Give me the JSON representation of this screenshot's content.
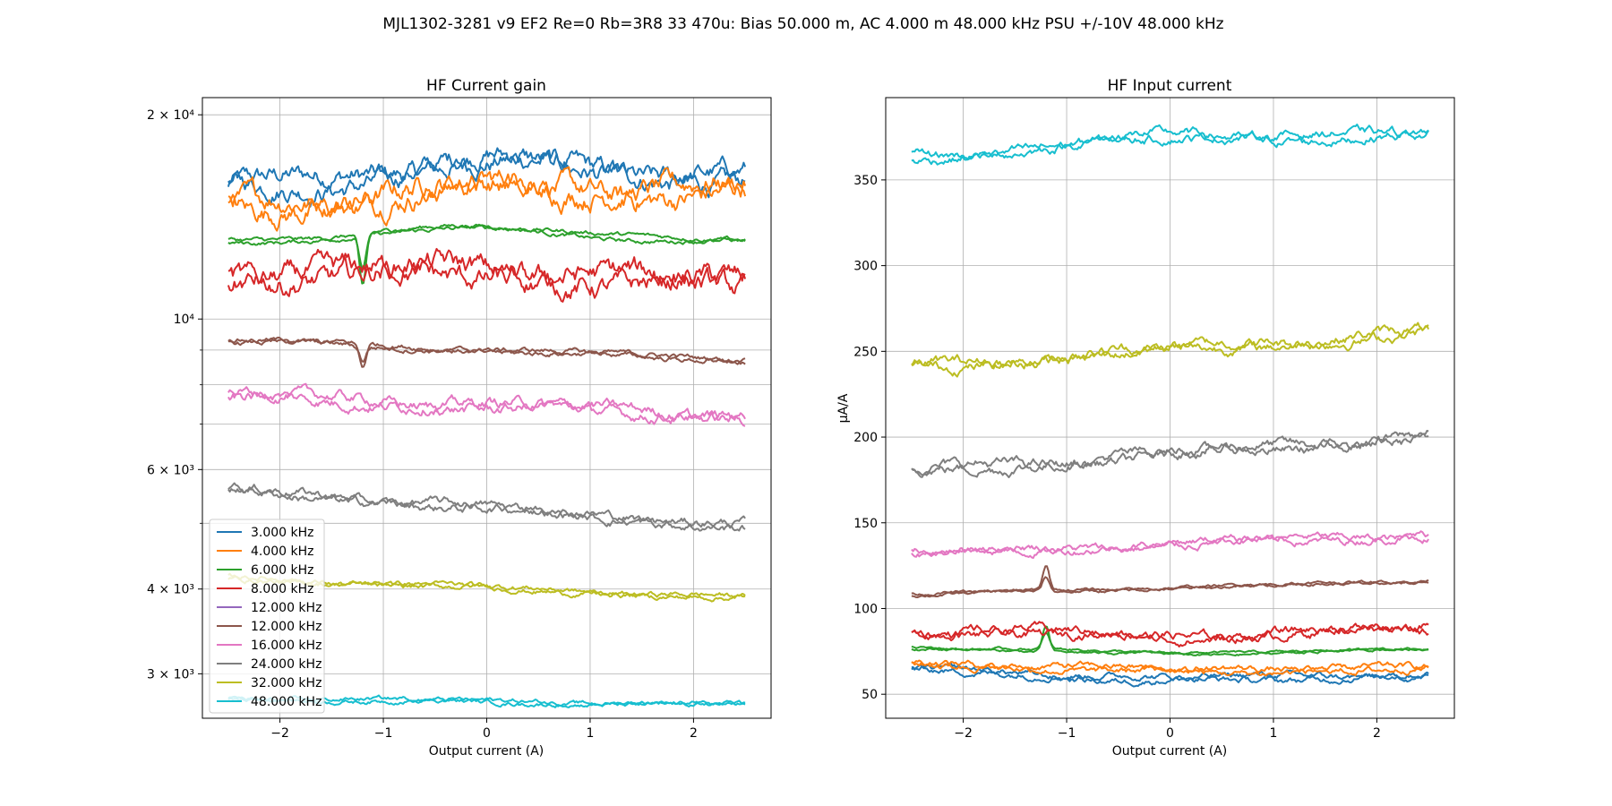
{
  "figure_title": "MJL1302-3281 v9 EF2 Re=0 Rb=3R8 33 470u: Bias 50.000 m, AC 4.000 m 48.000 kHz PSU +/-10V 48.000 kHz",
  "chart_data": [
    {
      "type": "line",
      "title": "HF Current gain",
      "xlabel": "Output current (A)",
      "ylabel": "",
      "yscale": "log",
      "xlim": [
        -2.75,
        2.75
      ],
      "ylim": [
        2580,
        21200
      ],
      "grid": true,
      "legend_position": "lower-left",
      "x_ticks": [
        -2,
        -1,
        0,
        1,
        2
      ],
      "x_tick_labels": [
        "−2",
        "−1",
        "0",
        "1",
        "2"
      ],
      "y_major_ticks": [
        3000,
        4000,
        6000,
        10000,
        20000
      ],
      "y_major_tick_labels": [
        "3 × 10³",
        "4 × 10³",
        "6 × 10³",
        "10⁴",
        "2 × 10⁴"
      ],
      "y_minor_ticks": [
        5000,
        7000,
        8000,
        9000
      ],
      "x_range": [
        -2.5,
        2.5
      ],
      "series": [
        {
          "name": "3.000 kHz",
          "color": "#1f77b4",
          "start": 15600,
          "end": 16200,
          "noise": 0.045,
          "hump": 0.07,
          "sweeps": 2
        },
        {
          "name": "4.000 kHz",
          "color": "#ff7f0e",
          "start": 14600,
          "end": 15500,
          "noise": 0.05,
          "hump": 0.04,
          "sweeps": 2
        },
        {
          "name": "6.000 kHz",
          "color": "#2ca02c",
          "start": 13000,
          "end": 13000,
          "noise": 0.01,
          "hump": 0.05,
          "sweeps": 2,
          "spike_x": -1.2,
          "spike_amp": -0.18
        },
        {
          "name": "8.000 kHz",
          "color": "#d62728",
          "start": 11600,
          "end": 11200,
          "noise": 0.05,
          "hump": 0.03,
          "sweeps": 2
        },
        {
          "name": "12.000 kHz",
          "color": "#9467bd",
          "start": 9300,
          "end": 8700,
          "noise": 0.0,
          "hump": 0.0,
          "sweeps": 0
        },
        {
          "name": "12.000 kHz",
          "color": "#8c564b",
          "start": 9300,
          "end": 8700,
          "noise": 0.012,
          "hump": 0.0,
          "sweeps": 2,
          "spike_x": -1.2,
          "spike_amp": -0.08
        },
        {
          "name": "16.000 kHz",
          "color": "#e377c2",
          "start": 7700,
          "end": 7200,
          "noise": 0.025,
          "hump": 0.0,
          "sweeps": 2
        },
        {
          "name": "24.000 kHz",
          "color": "#7f7f7f",
          "start": 5600,
          "end": 4950,
          "noise": 0.02,
          "hump": 0.0,
          "sweeps": 2
        },
        {
          "name": "32.000 kHz",
          "color": "#bcbd22",
          "start": 4150,
          "end": 3880,
          "noise": 0.012,
          "hump": 0.0,
          "sweeps": 2
        },
        {
          "name": "48.000 kHz",
          "color": "#17becf",
          "start": 2760,
          "end": 2700,
          "noise": 0.01,
          "hump": 0.0,
          "sweeps": 2
        }
      ]
    },
    {
      "type": "line",
      "title": "HF Input current",
      "xlabel": "Output current (A)",
      "ylabel": "µA/A",
      "yscale": "linear",
      "xlim": [
        -2.75,
        2.75
      ],
      "ylim": [
        36,
        398
      ],
      "grid": true,
      "x_ticks": [
        -2,
        -1,
        0,
        1,
        2
      ],
      "x_tick_labels": [
        "−2",
        "−1",
        "0",
        "1",
        "2"
      ],
      "y_ticks": [
        50,
        100,
        150,
        200,
        250,
        300,
        350
      ],
      "y_tick_labels": [
        "50",
        "100",
        "150",
        "200",
        "250",
        "300",
        "350"
      ],
      "x_range": [
        -2.5,
        2.5
      ],
      "series": [
        {
          "name": "3.000 kHz",
          "color": "#1f77b4",
          "start": 64,
          "end": 61,
          "noise": 2.5,
          "hump": -4,
          "sweeps": 2
        },
        {
          "name": "4.000 kHz",
          "color": "#ff7f0e",
          "start": 68,
          "end": 65,
          "noise": 2.5,
          "hump": -3,
          "sweeps": 2
        },
        {
          "name": "6.000 kHz",
          "color": "#2ca02c",
          "start": 77,
          "end": 76,
          "noise": 1.0,
          "hump": -3,
          "sweeps": 2,
          "spike_x": -1.2,
          "spike_amp": 15
        },
        {
          "name": "8.000 kHz",
          "color": "#d62728",
          "start": 87,
          "end": 88,
          "noise": 3.5,
          "hump": -4,
          "sweeps": 2
        },
        {
          "name": "12.000 kHz",
          "color": "#9467bd",
          "start": 108,
          "end": 116,
          "noise": 0.0,
          "hump": 0,
          "sweeps": 0
        },
        {
          "name": "12.000 kHz",
          "color": "#8c564b",
          "start": 108,
          "end": 116,
          "noise": 1.2,
          "hump": 0,
          "sweeps": 2,
          "spike_x": -1.2,
          "spike_amp": 14
        },
        {
          "name": "16.000 kHz",
          "color": "#e377c2",
          "start": 132,
          "end": 143,
          "noise": 3.0,
          "hump": 0,
          "sweeps": 2
        },
        {
          "name": "24.000 kHz",
          "color": "#7f7f7f",
          "start": 180,
          "end": 200,
          "noise": 4.0,
          "hump": 0,
          "sweeps": 2
        },
        {
          "name": "32.000 kHz",
          "color": "#bcbd22",
          "start": 241,
          "end": 261,
          "noise": 4.0,
          "hump": 0,
          "sweeps": 2
        },
        {
          "name": "48.000 kHz",
          "color": "#17becf",
          "start": 363,
          "end": 376,
          "noise": 3.5,
          "hump": 6,
          "sweeps": 2
        }
      ]
    }
  ]
}
